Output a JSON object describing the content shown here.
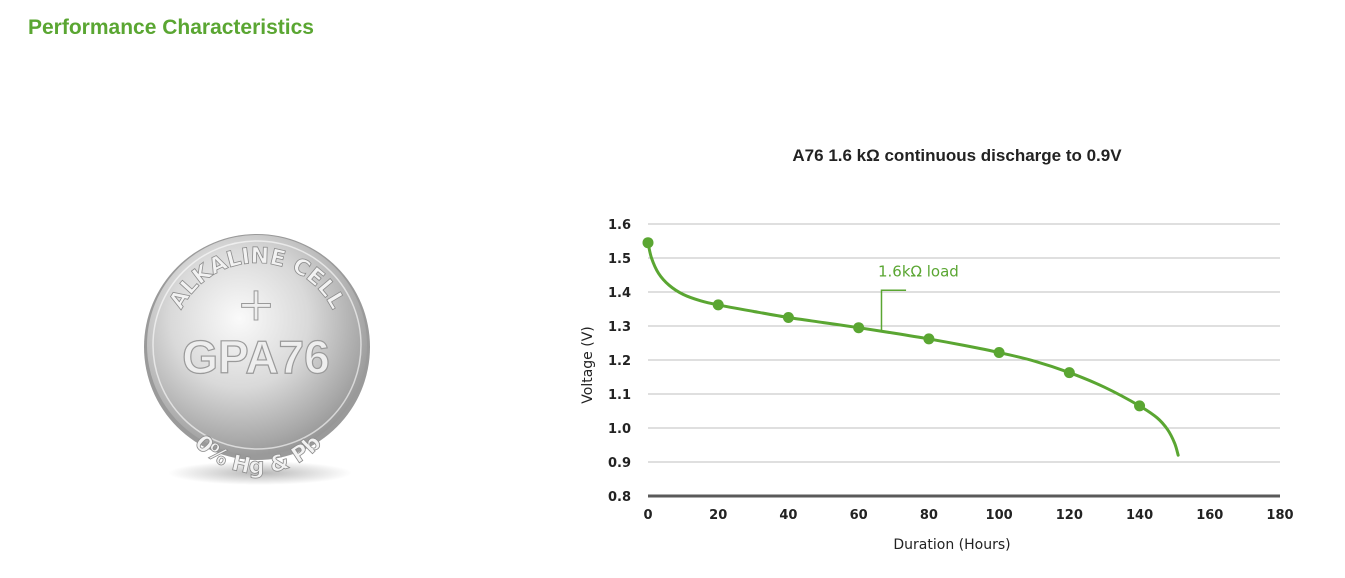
{
  "section_title": "Performance Characteristics",
  "battery": {
    "top_text": "ALKALINE CELL",
    "model": "GPA76",
    "bottom_text": "0% Hg & Pb",
    "polarity_symbol": "+"
  },
  "colors": {
    "accent": "#5aa632",
    "axis": "#5a5a5a",
    "grid": "#bfbfbf",
    "text": "#222222"
  },
  "chart_data": {
    "type": "line",
    "title": "A76 1.6 kΩ continuous discharge to 0.9V",
    "xlabel": "Duration (Hours)",
    "ylabel": "Voltage (V)",
    "xlim": [
      0,
      180
    ],
    "ylim": [
      0.8,
      1.6
    ],
    "x_ticks": [
      "0",
      "20",
      "40",
      "60",
      "80",
      "100",
      "120",
      "140",
      "160",
      "180"
    ],
    "y_ticks": [
      "0.8",
      "0.9",
      "1.0",
      "1.1",
      "1.2",
      "1.3",
      "1.4",
      "1.5",
      "1.6"
    ],
    "grid": true,
    "series": [
      {
        "name": "1.6kΩ load",
        "color": "#5aa632",
        "curve": [
          [
            0,
            1.545
          ],
          [
            1,
            1.5
          ],
          [
            3,
            1.455
          ],
          [
            6,
            1.42
          ],
          [
            10,
            1.393
          ],
          [
            15,
            1.374
          ],
          [
            20,
            1.362
          ],
          [
            30,
            1.343
          ],
          [
            40,
            1.325
          ],
          [
            50,
            1.31
          ],
          [
            60,
            1.295
          ],
          [
            70,
            1.279
          ],
          [
            80,
            1.262
          ],
          [
            90,
            1.243
          ],
          [
            100,
            1.222
          ],
          [
            110,
            1.197
          ],
          [
            120,
            1.163
          ],
          [
            130,
            1.12
          ],
          [
            140,
            1.065
          ],
          [
            145,
            1.03
          ],
          [
            148,
            0.995
          ],
          [
            150,
            0.955
          ],
          [
            151,
            0.92
          ]
        ],
        "markers": [
          [
            0,
            1.545
          ],
          [
            20,
            1.362
          ],
          [
            40,
            1.325
          ],
          [
            60,
            1.295
          ],
          [
            80,
            1.262
          ],
          [
            100,
            1.222
          ],
          [
            120,
            1.163
          ],
          [
            140,
            1.065
          ]
        ]
      }
    ]
  }
}
